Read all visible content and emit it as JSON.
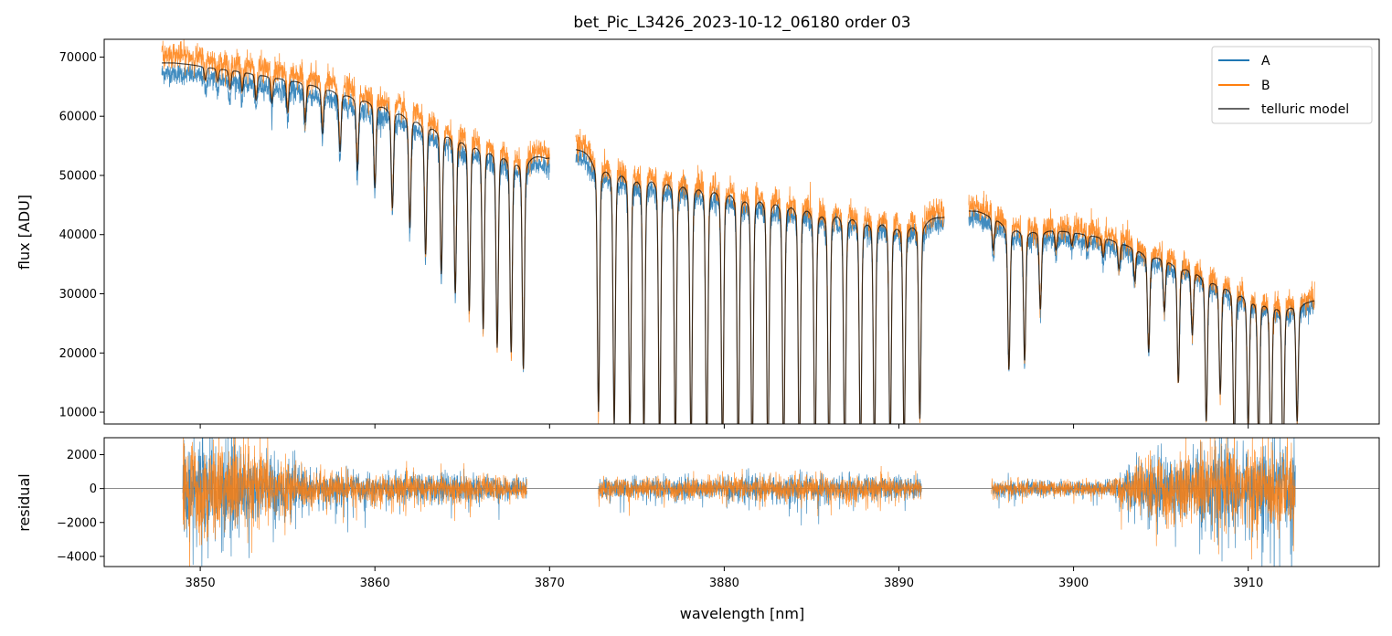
{
  "chart_data": [
    {
      "type": "line",
      "panel": "top",
      "title": "bet_Pic_L3426_2023-10-12_06180  order 03",
      "xlabel": "",
      "ylabel": "flux [ADU]",
      "xlim": [
        3844.5,
        3917.5
      ],
      "ylim": [
        8000,
        73000
      ],
      "yticks": [
        10000,
        20000,
        30000,
        40000,
        50000,
        60000,
        70000
      ],
      "yticklabels": [
        "10000",
        "20000",
        "30000",
        "40000",
        "50000",
        "60000",
        "70000"
      ],
      "xticks": [
        3850,
        3860,
        3870,
        3880,
        3890,
        3900,
        3910
      ],
      "legend": {
        "location": "top-right",
        "entries": [
          "A",
          "B",
          "telluric model"
        ]
      },
      "segments": [
        {
          "x_start": 3847.8,
          "x_end": 3870.0,
          "continuum_x": [
            3848.5,
            3852,
            3856,
            3860,
            3864,
            3868,
            3869.8
          ],
          "continuum_y": [
            69000,
            68000,
            66000,
            63000,
            59000,
            55500,
            53000
          ],
          "absorption_lines_x": [
            3850.3,
            3851.0,
            3851.7,
            3852.4,
            3853.2,
            3854.1,
            3855.0,
            3856.0,
            3857.0,
            3858.0,
            3859.0,
            3860.0,
            3861.0,
            3862.0,
            3862.9,
            3863.8,
            3864.6,
            3865.4,
            3866.2,
            3867.0,
            3867.8,
            3868.5
          ],
          "absorption_lines_depth": [
            2000,
            2000,
            3000,
            3000,
            4000,
            4000,
            5000,
            6000,
            7000,
            9000,
            11000,
            13000,
            15000,
            17000,
            20000,
            22000,
            24000,
            26000,
            28000,
            30000,
            30000,
            32000
          ]
        },
        {
          "x_start": 3871.5,
          "x_end": 3892.6,
          "continuum_x": [
            3872,
            3876,
            3880,
            3884,
            3888,
            3892.4
          ],
          "continuum_y": [
            54500,
            52500,
            50500,
            48000,
            45500,
            43000
          ],
          "absorption_lines_x": [
            3872.8,
            3873.7,
            3874.6,
            3875.4,
            3876.3,
            3877.2,
            3878.1,
            3879.0,
            3879.9,
            3880.8,
            3881.6,
            3882.5,
            3883.4,
            3884.3,
            3885.2,
            3886.0,
            3886.9,
            3887.8,
            3888.6,
            3889.5,
            3890.3,
            3891.2
          ],
          "absorption_lines_depth": [
            38000,
            39000,
            40000,
            40000,
            41000,
            41000,
            41000,
            41000,
            41000,
            41000,
            41000,
            41000,
            40000,
            40000,
            39000,
            39000,
            38000,
            37000,
            36000,
            35000,
            34000,
            30000
          ]
        },
        {
          "x_start": 3894.0,
          "x_end": 3913.8,
          "continuum_x": [
            3894.5,
            3898,
            3902,
            3906,
            3910,
            3913.5
          ],
          "continuum_y": [
            44000,
            41500,
            39500,
            36000,
            31500,
            29000
          ],
          "absorption_lines_x": [
            3895.4,
            3896.3,
            3897.2,
            3898.1,
            3899.0,
            3899.9,
            3900.8,
            3901.7,
            3902.6,
            3903.5,
            3904.3,
            3905.2,
            3906.0,
            3906.8,
            3907.6,
            3908.4,
            3909.2,
            3910.0,
            3910.6,
            3911.3,
            3912.0,
            3912.8
          ],
          "absorption_lines_depth": [
            5000,
            22000,
            20000,
            12000,
            3000,
            2000,
            2000,
            3000,
            4000,
            5000,
            15000,
            8000,
            18000,
            10000,
            22000,
            17000,
            24000,
            20000,
            22000,
            24000,
            25000,
            18000
          ]
        }
      ],
      "series": [
        {
          "name": "A",
          "color": "#1f77b4"
        },
        {
          "name": "B",
          "color": "#ff7f0e"
        },
        {
          "name": "telluric model",
          "color": "#000000"
        }
      ]
    },
    {
      "type": "line",
      "panel": "bottom",
      "title": "",
      "xlabel": "wavelength [nm]",
      "ylabel": "residual",
      "xlim": [
        3844.5,
        3917.5
      ],
      "ylim": [
        -4600,
        3000
      ],
      "yticks": [
        -4000,
        -2000,
        0,
        2000
      ],
      "yticklabels": [
        "−4000",
        "−2000",
        "0",
        "2000"
      ],
      "xticks": [
        3850,
        3860,
        3870,
        3880,
        3890,
        3900,
        3910
      ],
      "xticklabels": [
        "3850",
        "3860",
        "3870",
        "3880",
        "3890",
        "3900",
        "3910"
      ],
      "zero_line": 0,
      "segments": [
        {
          "x_start": 3849.0,
          "x_end": 3868.7,
          "noise_x": [
            3849,
            3852,
            3856,
            3860,
            3864,
            3868.7
          ],
          "noise_amp": [
            3200,
            3200,
            1300,
            900,
            1000,
            700
          ]
        },
        {
          "x_start": 3872.8,
          "x_end": 3891.3,
          "noise_x": [
            3872.8,
            3876,
            3880,
            3884,
            3888,
            3891.3
          ],
          "noise_amp": [
            700,
            700,
            800,
            900,
            800,
            700
          ]
        },
        {
          "x_start": 3895.3,
          "x_end": 3912.7,
          "noise_x": [
            3895.3,
            3899,
            3902,
            3904,
            3908,
            3912.7
          ],
          "noise_amp": [
            600,
            500,
            500,
            2000,
            2800,
            2800
          ]
        }
      ],
      "series": [
        {
          "name": "A",
          "color": "#1f77b4"
        },
        {
          "name": "B",
          "color": "#ff7f0e"
        }
      ]
    }
  ]
}
